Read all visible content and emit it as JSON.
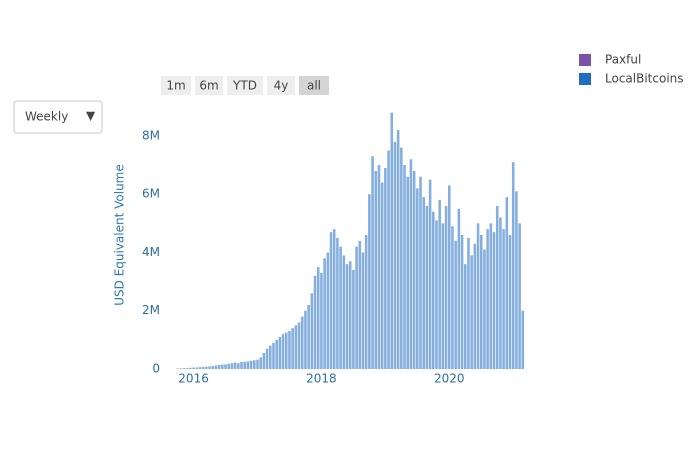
{
  "controls": {
    "dropdown": "Weekly",
    "range_buttons": [
      "1m",
      "6m",
      "YTD",
      "4y",
      "all"
    ],
    "active_button": 4
  },
  "chart_data": {
    "type": "bar",
    "y_label": "USD Equivalent Volume",
    "legend": "top-right",
    "grid": false,
    "xlim": [
      2015.6,
      2021.2
    ],
    "xticks": [
      2016,
      2018,
      2020
    ],
    "ylim": [
      0,
      9200000
    ],
    "yticks": [
      0,
      {
        "value": 2000000,
        "label": "2M"
      },
      {
        "value": 4000000,
        "label": "4M"
      },
      {
        "value": 6000000,
        "label": "6M"
      },
      {
        "value": 8000000,
        "label": "8M"
      }
    ],
    "x": [
      2015.75,
      2015.8,
      2015.85,
      2015.9,
      2015.95,
      2016.0,
      2016.05,
      2016.1,
      2016.15,
      2016.2,
      2016.25,
      2016.3,
      2016.35,
      2016.4,
      2016.45,
      2016.5,
      2016.55,
      2016.6,
      2016.65,
      2016.7,
      2016.75,
      2016.8,
      2016.85,
      2016.9,
      2016.95,
      2017.0,
      2017.05,
      2017.1,
      2017.15,
      2017.2,
      2017.25,
      2017.3,
      2017.35,
      2017.4,
      2017.45,
      2017.5,
      2017.55,
      2017.6,
      2017.65,
      2017.7,
      2017.75,
      2017.8,
      2017.85,
      2017.9,
      2017.95,
      2018.0,
      2018.05,
      2018.1,
      2018.15,
      2018.2,
      2018.25,
      2018.3,
      2018.35,
      2018.4,
      2018.45,
      2018.5,
      2018.55,
      2018.6,
      2018.65,
      2018.7,
      2018.75,
      2018.8,
      2018.85,
      2018.9,
      2018.95,
      2019.0,
      2019.05,
      2019.1,
      2019.15,
      2019.2,
      2019.25,
      2019.3,
      2019.35,
      2019.4,
      2019.45,
      2019.5,
      2019.55,
      2019.6,
      2019.65,
      2019.7,
      2019.75,
      2019.8,
      2019.85,
      2019.9,
      2019.95,
      2020.0,
      2020.05,
      2020.1,
      2020.15,
      2020.2,
      2020.25,
      2020.3,
      2020.35,
      2020.4,
      2020.45,
      2020.5,
      2020.55,
      2020.6,
      2020.65,
      2020.7,
      2020.75,
      2020.8,
      2020.85,
      2020.9,
      2020.95,
      2021.0,
      2021.05,
      2021.1,
      2021.15
    ],
    "series": [
      {
        "name": "Paxful",
        "color": "#7b52ab",
        "values": [
          null,
          null,
          null,
          null,
          null,
          null,
          null,
          null,
          null,
          null,
          null,
          null,
          null,
          null,
          null,
          null,
          null,
          null,
          null,
          null,
          null,
          null,
          null,
          null,
          null,
          null,
          null,
          null,
          null,
          null,
          null,
          null,
          null,
          null,
          null,
          null,
          null,
          null,
          null,
          null,
          null,
          null,
          null,
          null,
          null,
          null,
          null,
          null,
          null,
          null,
          null,
          null,
          null,
          null,
          null,
          null,
          null,
          null,
          null,
          null,
          null,
          null,
          null,
          null,
          null,
          null,
          null,
          null,
          null,
          null,
          null,
          null,
          null,
          null,
          null,
          null,
          null,
          null,
          null,
          null,
          null,
          null,
          null,
          null,
          null,
          null,
          null,
          null,
          null,
          null,
          null,
          null,
          null,
          null,
          null,
          null,
          null,
          null,
          null,
          null,
          null,
          null,
          null,
          null,
          null,
          null,
          null,
          null,
          null
        ]
      },
      {
        "name": "LocalBitcoins",
        "color": "#1f6cc1",
        "values": [
          20000,
          20000,
          30000,
          30000,
          40000,
          50000,
          50000,
          60000,
          70000,
          80000,
          90000,
          100000,
          120000,
          140000,
          150000,
          160000,
          180000,
          200000,
          220000,
          200000,
          240000,
          250000,
          260000,
          280000,
          300000,
          320000,
          400000,
          550000,
          700000,
          800000,
          900000,
          1000000,
          1100000,
          1200000,
          1250000,
          1300000,
          1400000,
          1500000,
          1600000,
          1800000,
          2000000,
          2200000,
          2600000,
          3200000,
          3500000,
          3300000,
          3800000,
          4000000,
          4700000,
          4800000,
          4500000,
          4200000,
          3900000,
          3600000,
          3700000,
          3400000,
          4200000,
          4400000,
          4000000,
          4600000,
          6000000,
          7300000,
          6800000,
          7000000,
          6400000,
          6900000,
          7500000,
          8800000,
          7800000,
          8200000,
          7600000,
          7000000,
          6600000,
          7200000,
          6800000,
          6200000,
          6600000,
          5900000,
          5600000,
          6500000,
          5400000,
          5100000,
          5800000,
          5000000,
          5600000,
          6300000,
          4900000,
          4400000,
          5500000,
          4600000,
          3600000,
          4500000,
          3900000,
          4300000,
          5000000,
          4600000,
          4100000,
          4800000,
          5000000,
          4700000,
          5600000,
          5200000,
          4800000,
          5900000,
          4600000,
          7100000,
          6100000,
          5000000,
          2000000
        ]
      }
    ]
  }
}
